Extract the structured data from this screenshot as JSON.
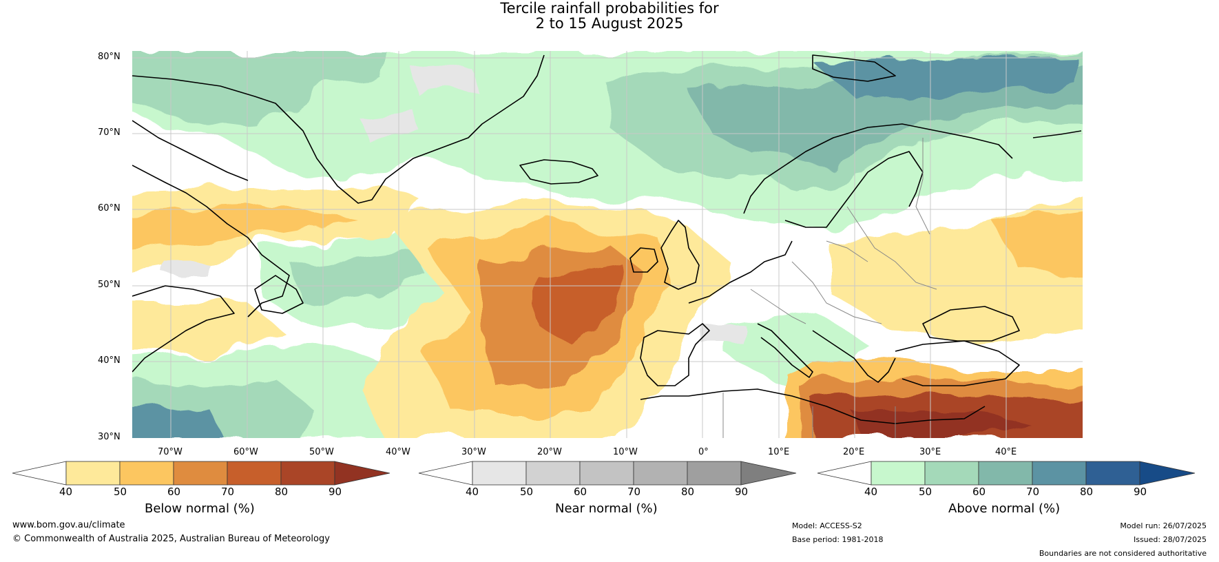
{
  "title": {
    "line1": "Tercile rainfall probabilities for",
    "line2": "2 to 15 August 2025"
  },
  "map": {
    "lat_labels": [
      "80°N",
      "70°N",
      "60°N",
      "50°N",
      "40°N",
      "30°N"
    ],
    "lon_labels": [
      "70°W",
      "60°W",
      "50°W",
      "40°W",
      "30°W",
      "20°W",
      "10°W",
      "0°",
      "10°E",
      "20°E",
      "30°E",
      "40°E"
    ],
    "colors": {
      "land_outline": "#000000",
      "country_border": "#888888",
      "gridline": "#c8c8c8"
    }
  },
  "legends": [
    {
      "name": "Below normal (%)",
      "ticks": [
        "40",
        "50",
        "60",
        "70",
        "80",
        "90"
      ],
      "colors": [
        "#ffffff",
        "#fee99a",
        "#fcc660",
        "#df8c3f",
        "#c75f2b",
        "#aa4527",
        "#923322"
      ]
    },
    {
      "name": "Near normal (%)",
      "ticks": [
        "40",
        "50",
        "60",
        "70",
        "80",
        "90"
      ],
      "colors": [
        "#ffffff",
        "#e6e6e6",
        "#d2d2d2",
        "#c3c3c3",
        "#b2b2b2",
        "#9f9f9f",
        "#7f7f7f"
      ]
    },
    {
      "name": "Above normal (%)",
      "ticks": [
        "40",
        "50",
        "60",
        "70",
        "80",
        "90"
      ],
      "colors": [
        "#ffffff",
        "#c7f7cd",
        "#a4d9b9",
        "#82b8aa",
        "#5c93a3",
        "#2f6094",
        "#174b87"
      ]
    }
  ],
  "footer": {
    "website": "www.bom.gov.au/climate",
    "copyright": "© Commonwealth of Australia 2025, Australian Bureau of Meteorology",
    "model": "Model: ACCESS-S2",
    "base_period": "Base period: 1981-2018",
    "model_run": "Model run: 26/07/2025",
    "issued": "Issued: 28/07/2025",
    "disclaimer": "Boundaries are not considered authoritative"
  }
}
